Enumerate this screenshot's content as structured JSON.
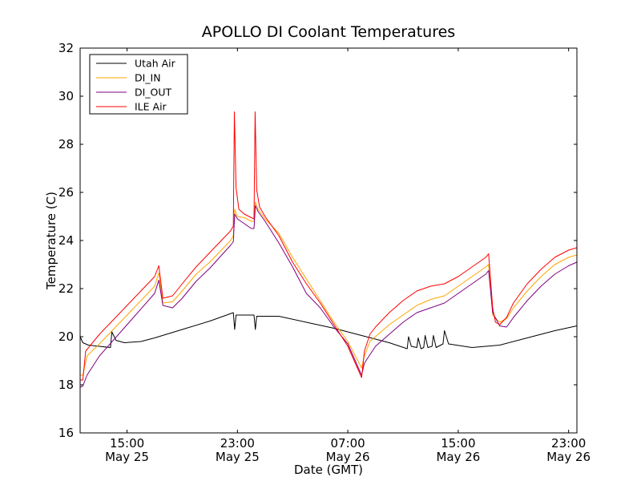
{
  "chart_data": {
    "type": "line",
    "title": "APOLLO DI Coolant Temperatures",
    "xlabel": "Date (GMT)",
    "ylabel": "Temperature (C)",
    "xlim": [
      11.6,
      47.6
    ],
    "ylim": [
      16,
      32
    ],
    "y_ticks": [
      16,
      18,
      20,
      22,
      24,
      26,
      28,
      30,
      32
    ],
    "x_ticks": [
      {
        "value": 15,
        "time": "15:00",
        "date": "May 25"
      },
      {
        "value": 23,
        "time": "23:00",
        "date": "May 25"
      },
      {
        "value": 31,
        "time": "07:00",
        "date": "May 26"
      },
      {
        "value": 39,
        "time": "15:00",
        "date": "May 26"
      },
      {
        "value": 47,
        "time": "23:00",
        "date": "May 26"
      }
    ],
    "legend_position": "top-left",
    "x_units": "hours since May 25 00:00 GMT",
    "series": [
      {
        "name": "Utah Air",
        "color": "#000000",
        "points": [
          [
            11.6,
            20.0
          ],
          [
            11.8,
            19.75
          ],
          [
            12.2,
            19.65
          ],
          [
            13.0,
            19.6
          ],
          [
            13.8,
            19.55
          ],
          [
            13.9,
            20.2
          ],
          [
            14.2,
            19.85
          ],
          [
            14.8,
            19.75
          ],
          [
            16.0,
            19.8
          ],
          [
            17.0,
            19.95
          ],
          [
            19.0,
            20.3
          ],
          [
            21.0,
            20.65
          ],
          [
            22.7,
            21.0
          ],
          [
            22.8,
            20.3
          ],
          [
            22.9,
            20.9
          ],
          [
            24.2,
            20.9
          ],
          [
            24.3,
            20.3
          ],
          [
            24.4,
            20.85
          ],
          [
            26.0,
            20.85
          ],
          [
            28.0,
            20.6
          ],
          [
            30.0,
            20.35
          ],
          [
            32.0,
            20.05
          ],
          [
            34.0,
            19.75
          ],
          [
            35.3,
            19.5
          ],
          [
            35.4,
            20.0
          ],
          [
            35.6,
            19.6
          ],
          [
            36.0,
            19.55
          ],
          [
            36.1,
            19.95
          ],
          [
            36.3,
            19.5
          ],
          [
            36.5,
            19.55
          ],
          [
            36.6,
            20.05
          ],
          [
            36.8,
            19.55
          ],
          [
            37.1,
            19.6
          ],
          [
            37.2,
            20.05
          ],
          [
            37.4,
            19.55
          ],
          [
            37.9,
            19.7
          ],
          [
            38.0,
            20.25
          ],
          [
            38.3,
            19.7
          ],
          [
            40.0,
            19.55
          ],
          [
            42.0,
            19.65
          ],
          [
            44.0,
            19.95
          ],
          [
            46.0,
            20.25
          ],
          [
            47.6,
            20.45
          ]
        ]
      },
      {
        "name": "DI_IN",
        "color": "#ffa500",
        "points": [
          [
            11.6,
            18.4
          ],
          [
            11.8,
            18.4
          ],
          [
            12.1,
            19.2
          ],
          [
            13.0,
            19.7
          ],
          [
            15.0,
            20.9
          ],
          [
            17.0,
            22.1
          ],
          [
            17.3,
            22.65
          ],
          [
            17.6,
            21.4
          ],
          [
            18.3,
            21.45
          ],
          [
            19.0,
            21.9
          ],
          [
            20.0,
            22.6
          ],
          [
            21.0,
            23.1
          ],
          [
            22.5,
            24.0
          ],
          [
            22.7,
            24.2
          ],
          [
            22.8,
            25.3
          ],
          [
            23.0,
            25.0
          ],
          [
            23.5,
            24.95
          ],
          [
            24.0,
            24.8
          ],
          [
            24.2,
            24.8
          ],
          [
            24.3,
            25.6
          ],
          [
            24.5,
            25.3
          ],
          [
            25.0,
            24.9
          ],
          [
            26.0,
            24.3
          ],
          [
            27.0,
            23.3
          ],
          [
            28.0,
            22.4
          ],
          [
            29.0,
            21.5
          ],
          [
            30.0,
            20.6
          ],
          [
            31.0,
            19.8
          ],
          [
            32.0,
            18.7
          ],
          [
            32.2,
            19.2
          ],
          [
            32.6,
            19.8
          ],
          [
            33.0,
            20.0
          ],
          [
            34.0,
            20.5
          ],
          [
            35.0,
            20.9
          ],
          [
            36.0,
            21.3
          ],
          [
            37.0,
            21.55
          ],
          [
            38.0,
            21.7
          ],
          [
            39.0,
            22.1
          ],
          [
            40.0,
            22.5
          ],
          [
            41.0,
            22.9
          ],
          [
            41.2,
            23.0
          ],
          [
            41.5,
            20.9
          ],
          [
            42.0,
            20.6
          ],
          [
            42.5,
            20.75
          ],
          [
            43.0,
            21.2
          ],
          [
            44.0,
            21.9
          ],
          [
            45.0,
            22.5
          ],
          [
            46.0,
            23.0
          ],
          [
            47.0,
            23.3
          ],
          [
            47.6,
            23.4
          ]
        ]
      },
      {
        "name": "DI_OUT",
        "color": "#800080",
        "points": [
          [
            11.6,
            17.9
          ],
          [
            11.8,
            17.95
          ],
          [
            12.1,
            18.4
          ],
          [
            13.0,
            19.2
          ],
          [
            15.0,
            20.5
          ],
          [
            17.0,
            21.8
          ],
          [
            17.3,
            22.35
          ],
          [
            17.6,
            21.3
          ],
          [
            18.3,
            21.2
          ],
          [
            19.0,
            21.6
          ],
          [
            20.0,
            22.3
          ],
          [
            21.0,
            22.85
          ],
          [
            22.5,
            23.8
          ],
          [
            22.7,
            23.95
          ],
          [
            22.8,
            25.1
          ],
          [
            23.0,
            24.9
          ],
          [
            24.0,
            24.5
          ],
          [
            24.2,
            24.5
          ],
          [
            24.3,
            25.45
          ],
          [
            24.5,
            25.2
          ],
          [
            25.0,
            24.8
          ],
          [
            26.0,
            23.9
          ],
          [
            27.0,
            22.9
          ],
          [
            28.0,
            21.8
          ],
          [
            29.0,
            21.2
          ],
          [
            30.0,
            20.4
          ],
          [
            31.0,
            19.7
          ],
          [
            32.0,
            18.4
          ],
          [
            32.2,
            18.9
          ],
          [
            33.0,
            19.6
          ],
          [
            34.0,
            20.1
          ],
          [
            35.0,
            20.6
          ],
          [
            36.0,
            21.0
          ],
          [
            37.0,
            21.2
          ],
          [
            38.0,
            21.4
          ],
          [
            39.0,
            21.8
          ],
          [
            40.0,
            22.2
          ],
          [
            41.0,
            22.6
          ],
          [
            41.2,
            22.75
          ],
          [
            41.5,
            21.0
          ],
          [
            42.0,
            20.45
          ],
          [
            42.5,
            20.4
          ],
          [
            43.0,
            20.8
          ],
          [
            44.0,
            21.5
          ],
          [
            45.0,
            22.1
          ],
          [
            46.0,
            22.6
          ],
          [
            47.0,
            22.95
          ],
          [
            47.6,
            23.1
          ]
        ]
      },
      {
        "name": "ILE Air",
        "color": "#ff0000",
        "points": [
          [
            11.6,
            18.2
          ],
          [
            11.8,
            18.2
          ],
          [
            12.0,
            19.4
          ],
          [
            13.0,
            20.1
          ],
          [
            15.0,
            21.3
          ],
          [
            17.0,
            22.5
          ],
          [
            17.3,
            22.95
          ],
          [
            17.6,
            21.6
          ],
          [
            18.3,
            21.7
          ],
          [
            19.0,
            22.2
          ],
          [
            20.0,
            22.9
          ],
          [
            21.0,
            23.5
          ],
          [
            22.5,
            24.4
          ],
          [
            22.7,
            24.6
          ],
          [
            22.78,
            29.35
          ],
          [
            22.9,
            26.2
          ],
          [
            23.1,
            25.3
          ],
          [
            23.5,
            25.1
          ],
          [
            24.0,
            24.95
          ],
          [
            24.2,
            24.9
          ],
          [
            24.28,
            29.35
          ],
          [
            24.4,
            26.1
          ],
          [
            24.6,
            25.4
          ],
          [
            25.0,
            25.0
          ],
          [
            26.0,
            24.2
          ],
          [
            27.0,
            23.1
          ],
          [
            28.0,
            22.2
          ],
          [
            29.0,
            21.4
          ],
          [
            30.0,
            20.5
          ],
          [
            31.0,
            19.6
          ],
          [
            32.0,
            18.3
          ],
          [
            32.2,
            19.4
          ],
          [
            32.6,
            20.1
          ],
          [
            33.0,
            20.4
          ],
          [
            34.0,
            21.0
          ],
          [
            35.0,
            21.5
          ],
          [
            36.0,
            21.9
          ],
          [
            37.0,
            22.1
          ],
          [
            38.0,
            22.2
          ],
          [
            39.0,
            22.5
          ],
          [
            40.0,
            22.9
          ],
          [
            41.0,
            23.3
          ],
          [
            41.2,
            23.45
          ],
          [
            41.5,
            21.2
          ],
          [
            41.7,
            20.6
          ],
          [
            42.0,
            20.5
          ],
          [
            42.5,
            20.8
          ],
          [
            43.0,
            21.4
          ],
          [
            44.0,
            22.2
          ],
          [
            45.0,
            22.8
          ],
          [
            46.0,
            23.3
          ],
          [
            47.0,
            23.6
          ],
          [
            47.6,
            23.7
          ]
        ]
      }
    ]
  }
}
